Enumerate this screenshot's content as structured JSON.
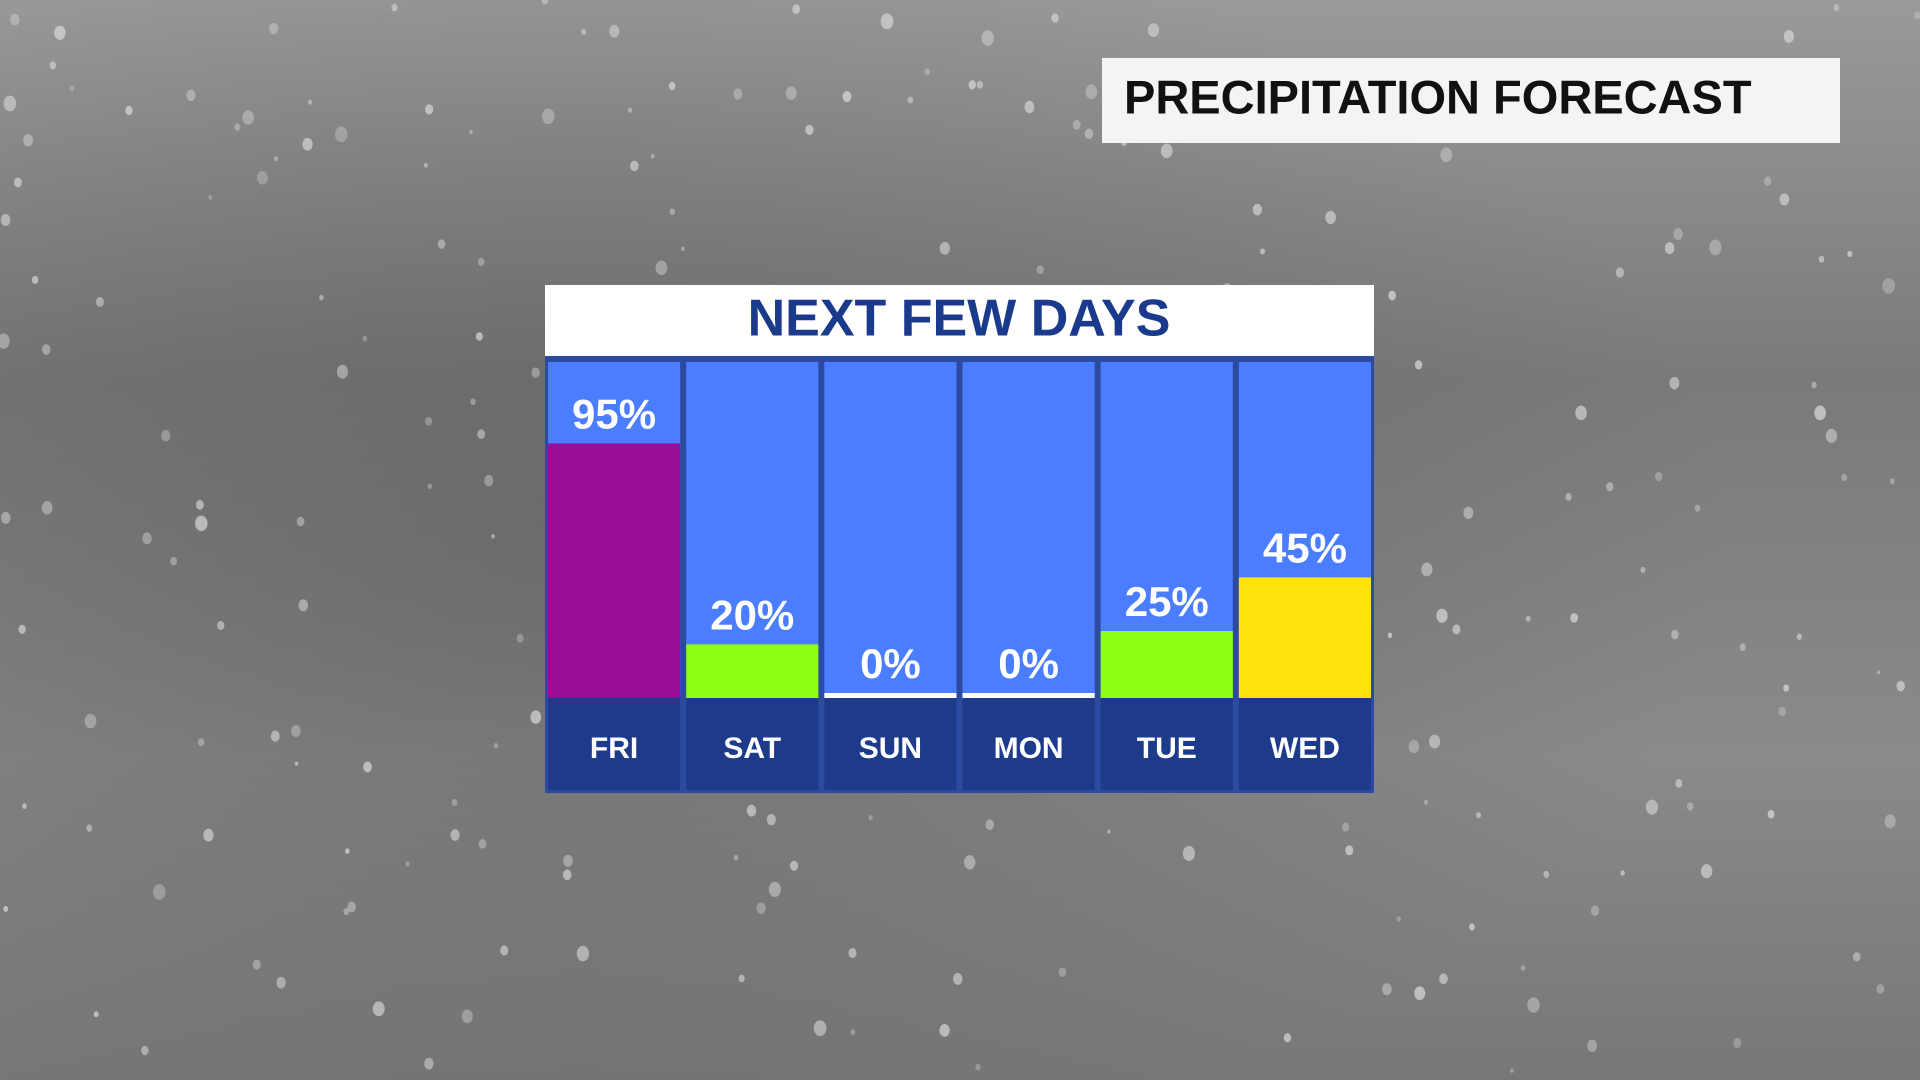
{
  "chart_data": {
    "type": "bar",
    "title": "PRECIPITATION FORECAST",
    "subtitle": "NEXT FEW DAYS",
    "categories": [
      "FRI",
      "SAT",
      "SUN",
      "MON",
      "TUE",
      "WED"
    ],
    "values": [
      95,
      20,
      0,
      0,
      25,
      45
    ],
    "value_labels": [
      "95%",
      "20%",
      "0%",
      "0%",
      "25%",
      "45%"
    ],
    "colors": [
      "#990d99",
      "#8cff12",
      "#ffffff",
      "#ffffff",
      "#8cff12",
      "#ffe20a"
    ],
    "ylim": [
      0,
      100
    ]
  }
}
